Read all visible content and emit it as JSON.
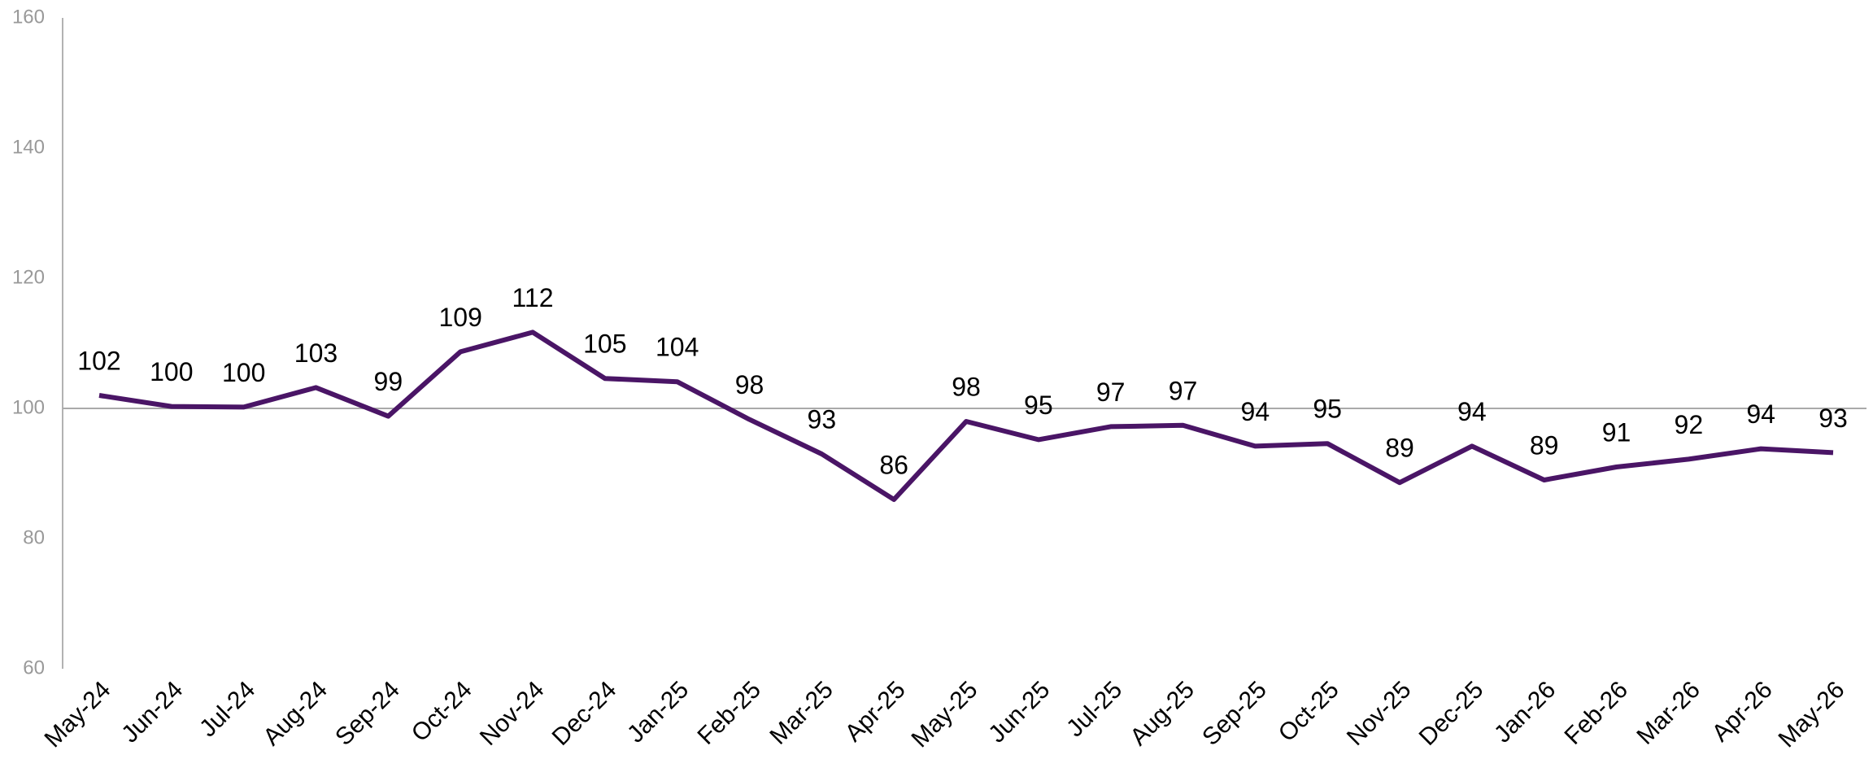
{
  "chart_data": {
    "type": "line",
    "categories": [
      "May-24",
      "Jun-24",
      "Jul-24",
      "Aug-24",
      "Sep-24",
      "Oct-24",
      "Nov-24",
      "Dec-24",
      "Jan-25",
      "Feb-25",
      "Mar-25",
      "Apr-25",
      "May-25",
      "Jun-25",
      "Jul-25",
      "Aug-25",
      "Sep-25",
      "Oct-25",
      "Nov-25",
      "Dec-25",
      "Jan-26",
      "Feb-26",
      "Mar-26",
      "Apr-26",
      "May-26"
    ],
    "series": [
      {
        "color": "#4a1566",
        "values": [
          102,
          100.3,
          100.2,
          103.2,
          98.8,
          108.7,
          111.7,
          104.6,
          104.1,
          98.3,
          93,
          86,
          98,
          95.2,
          97.2,
          97.4,
          94.2,
          94.6,
          88.6,
          94.2,
          89,
          91,
          92.2,
          93.8,
          93.2
        ],
        "value_labels": [
          "102",
          "100",
          "100",
          "103",
          "99",
          "109",
          "112",
          "105",
          "104",
          "98",
          "93",
          "86",
          "98",
          "95",
          "97",
          "97",
          "94",
          "95",
          "89",
          "94",
          "89",
          "91",
          "92",
          "94",
          "93"
        ]
      }
    ],
    "ylim": [
      60,
      160
    ],
    "yticks": [
      60,
      80,
      100,
      120,
      140,
      160
    ],
    "hline": 100
  }
}
